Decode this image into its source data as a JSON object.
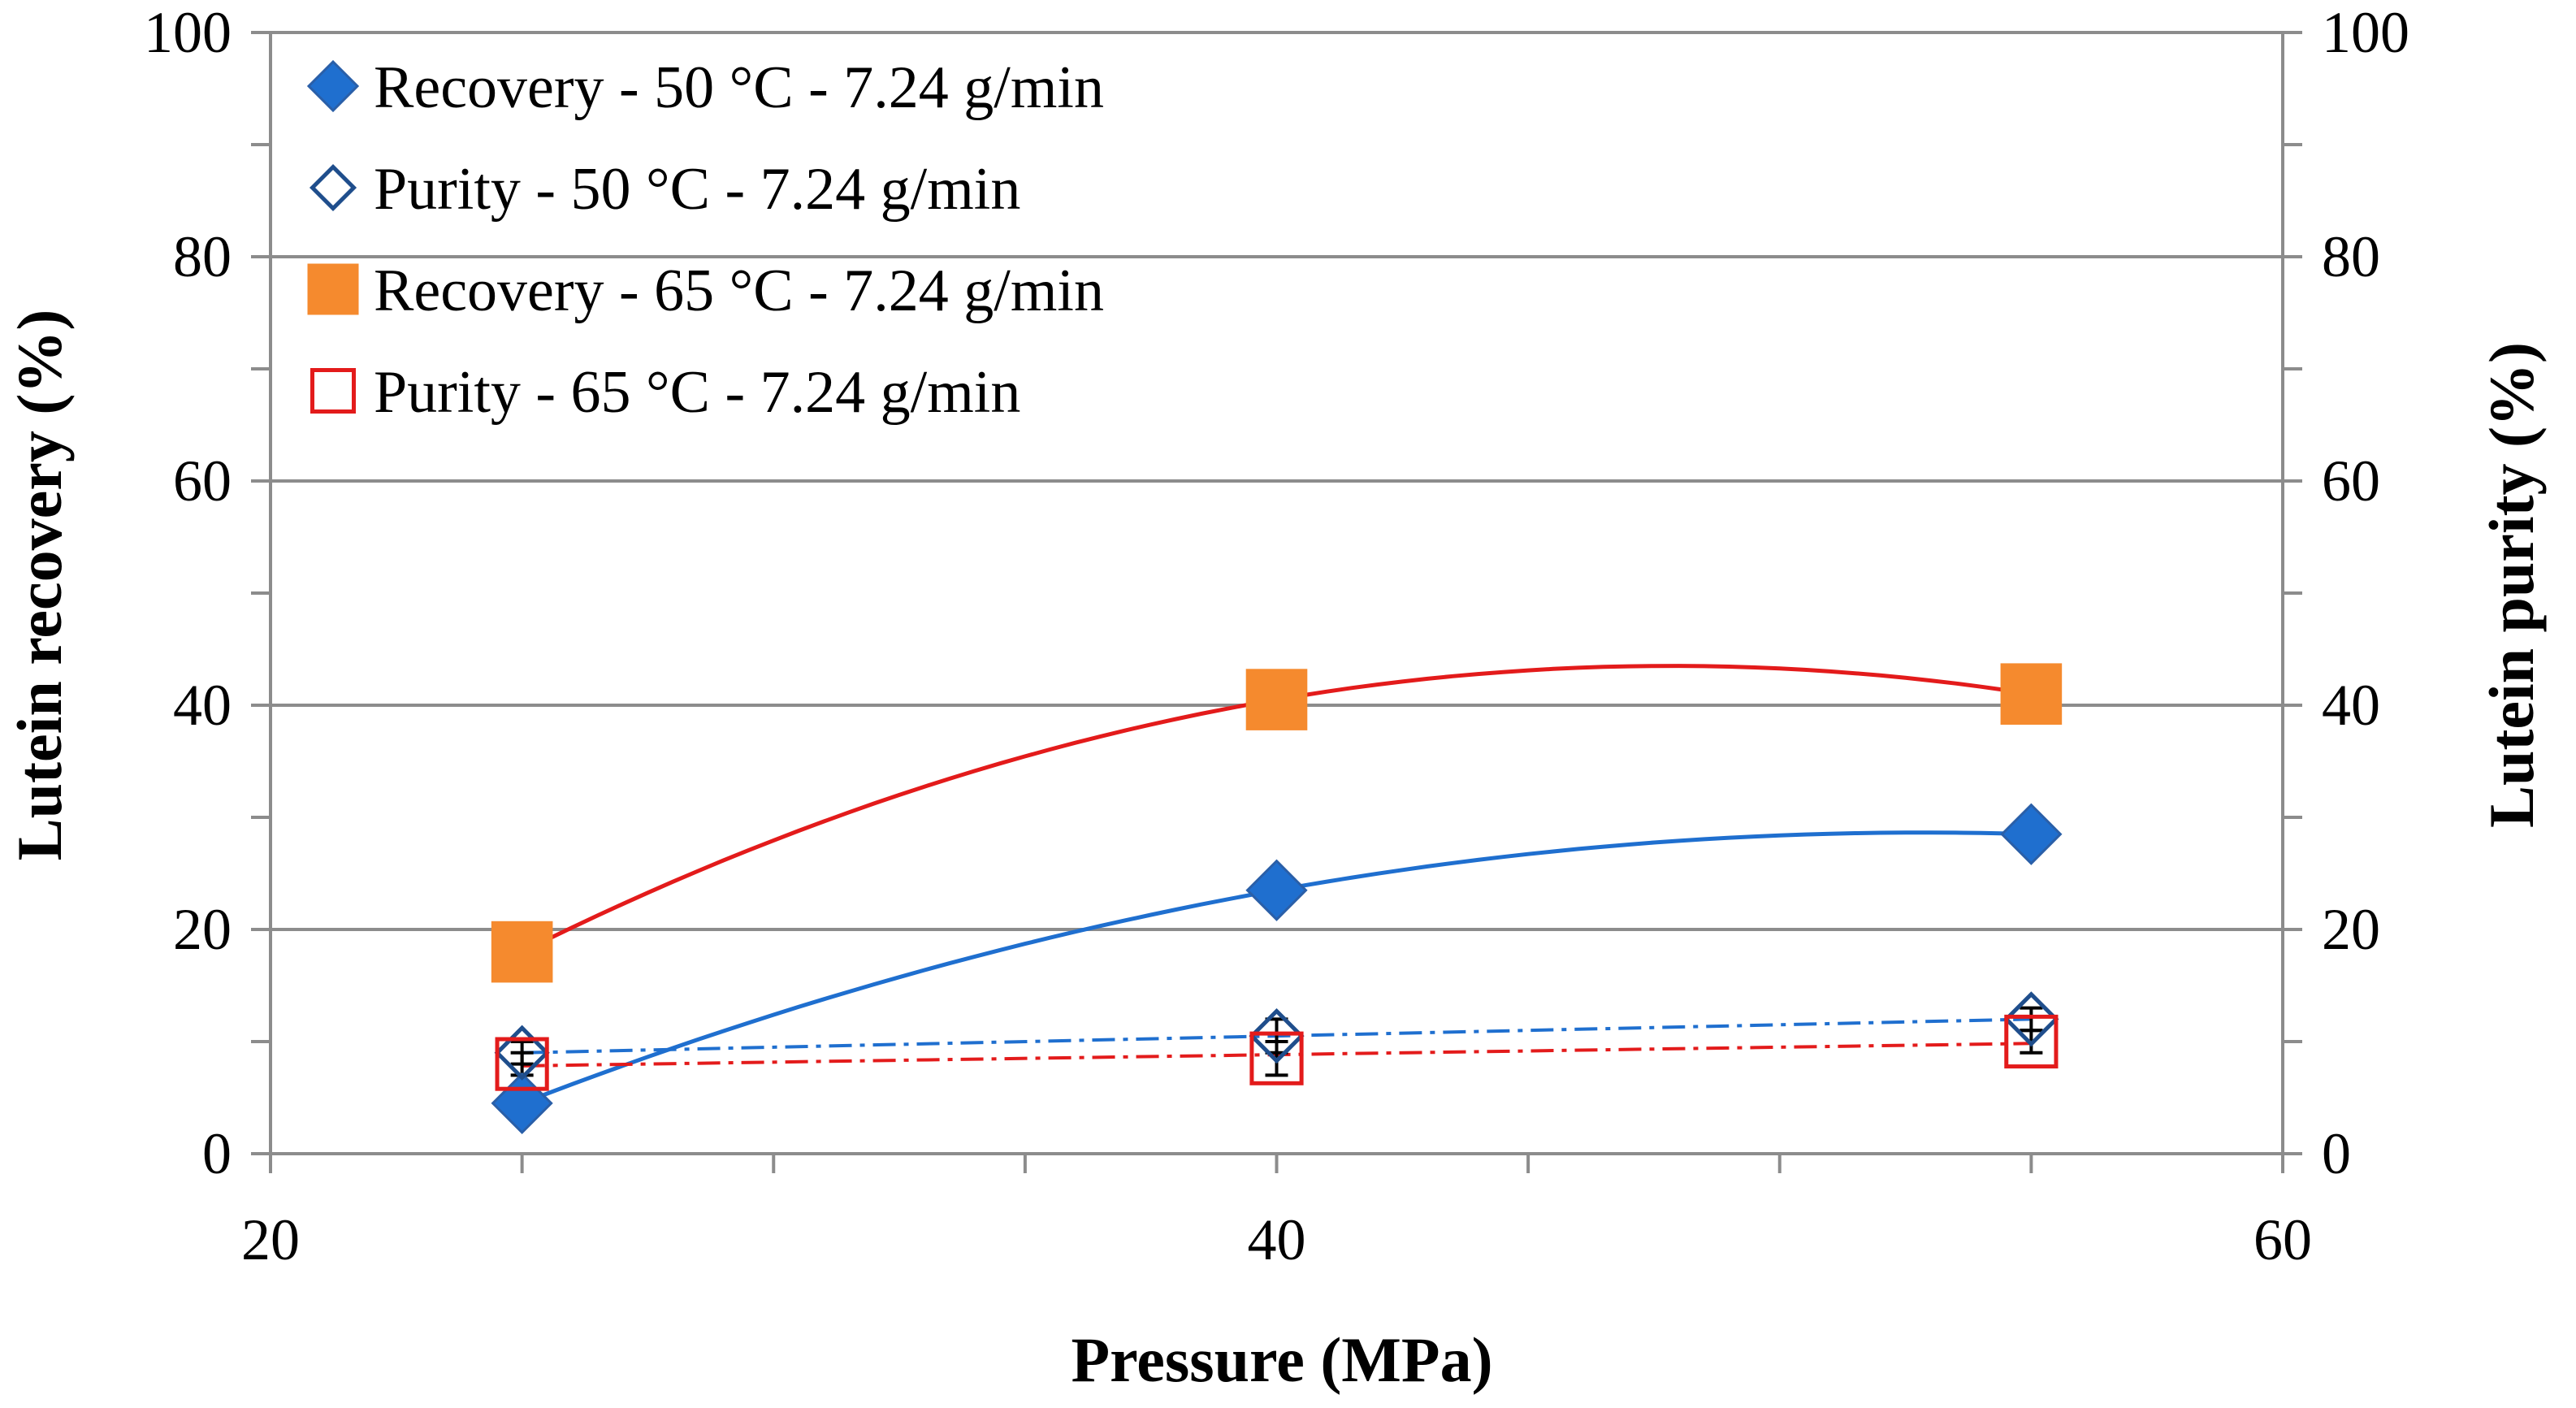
{
  "chart_data": {
    "type": "scatter",
    "title": "",
    "xlabel": "Pressure (MPa)",
    "ylabel": "Lutein recovery (%)",
    "y2label": "Lutein purity (%)",
    "xlim": [
      20,
      60
    ],
    "ylim": [
      0,
      100
    ],
    "y2lim": [
      0,
      100
    ],
    "xticks": [
      "20",
      "40",
      "60"
    ],
    "yticks": [
      "0",
      "20",
      "40",
      "60",
      "80",
      "100"
    ],
    "y2ticks": [
      "0",
      "20",
      "40",
      "60",
      "80",
      "100"
    ],
    "grid": "horizontal major lines",
    "legend_position": "top-left",
    "colors": {
      "blue": "#1f6fcf",
      "dark_blue": "#1f4e8c",
      "orange": "#f58a2e",
      "red": "#e31b1b",
      "grid": "#8c8c8c"
    },
    "series": [
      {
        "name": "Recovery - 50 °C - 7.24 g/min",
        "marker": "filled-diamond",
        "axis": "left",
        "x": [
          25,
          40,
          55
        ],
        "y": [
          4.5,
          23.5,
          28.5
        ],
        "errors": [
          0.5,
          1.0,
          1.0
        ],
        "trend": "polynomial"
      },
      {
        "name": "Purity - 50 °C - 7.24 g/min",
        "marker": "open-diamond",
        "axis": "right",
        "x": [
          25,
          40,
          55
        ],
        "y": [
          9,
          10.5,
          12
        ],
        "errors": [
          1.0,
          1.5,
          1.0
        ],
        "trend": "linear-dashdot"
      },
      {
        "name": "Recovery - 65 °C - 7.24 g/min",
        "marker": "filled-square",
        "axis": "left",
        "x": [
          25,
          40,
          55
        ],
        "y": [
          18,
          40.5,
          41
        ],
        "errors": [
          0.5,
          0.5,
          0.5
        ],
        "trend": "polynomial"
      },
      {
        "name": "Purity - 65 °C - 7.24 g/min",
        "marker": "open-square",
        "axis": "right",
        "x": [
          25,
          40,
          55
        ],
        "y": [
          8,
          8.5,
          10
        ],
        "errors": [
          1.0,
          1.5,
          1.0
        ],
        "trend": "linear-dashdot"
      }
    ]
  }
}
